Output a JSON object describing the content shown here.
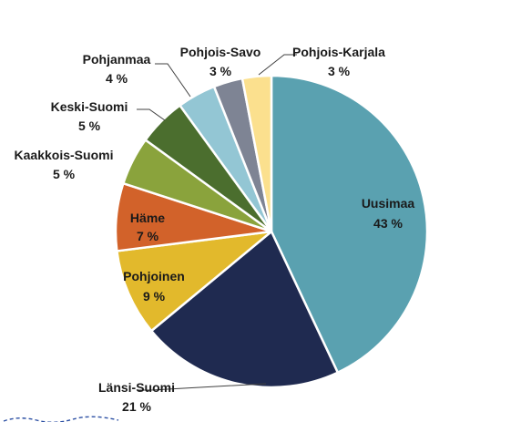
{
  "chart_data": {
    "type": "pie",
    "title": "",
    "slices": [
      {
        "label": "Uusimaa",
        "value": 43,
        "value_label": "43 %",
        "color": "#5aa1b0"
      },
      {
        "label": "Länsi-Suomi",
        "value": 21,
        "value_label": "21 %",
        "color": "#1f2a50"
      },
      {
        "label": "Pohjoinen",
        "value": 9,
        "value_label": "9 %",
        "color": "#e2b92c"
      },
      {
        "label": "Häme",
        "value": 7,
        "value_label": "7 %",
        "color": "#d2622a"
      },
      {
        "label": "Kaakkois-Suomi",
        "value": 5,
        "value_label": "5 %",
        "color": "#8aa33c"
      },
      {
        "label": "Keski-Suomi",
        "value": 5,
        "value_label": "5 %",
        "color": "#4b6e2e"
      },
      {
        "label": "Pohjanmaa",
        "value": 4,
        "value_label": "4 %",
        "color": "#93c6d4"
      },
      {
        "label": "Pohjois-Savo",
        "value": 3,
        "value_label": "3 %",
        "color": "#7e8494"
      },
      {
        "label": "Pohjois-Karjala",
        "value": 3,
        "value_label": "3 %",
        "color": "#fbe08e"
      }
    ],
    "legend": "none",
    "data_labels": "category and value"
  }
}
